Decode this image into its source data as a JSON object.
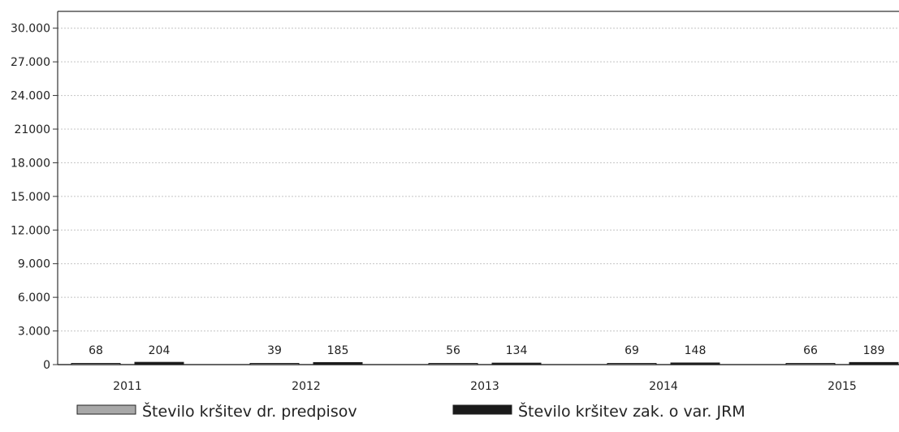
{
  "chart_data": {
    "type": "bar",
    "categories": [
      "2011",
      "2012",
      "2013",
      "2014",
      "2015"
    ],
    "series": [
      {
        "name": "Število kršitev dr. predpisov",
        "values": [
          68,
          39,
          56,
          69,
          66
        ],
        "color": "#a8a8a8"
      },
      {
        "name": "Število kršitev zak. o var. JRM",
        "values": [
          204,
          185,
          134,
          148,
          189
        ],
        "color": "#1a1a1a"
      }
    ],
    "y_ticks": [
      {
        "value": 0,
        "label": "0"
      },
      {
        "value": 3000,
        "label": "3.000"
      },
      {
        "value": 6000,
        "label": "6.000"
      },
      {
        "value": 9000,
        "label": "9.000"
      },
      {
        "value": 12000,
        "label": "12.000"
      },
      {
        "value": 15000,
        "label": "15.000"
      },
      {
        "value": 18000,
        "label": "18.000"
      },
      {
        "value": 21000,
        "label": "21000"
      },
      {
        "value": 24000,
        "label": "24.000"
      },
      {
        "value": 27000,
        "label": "27.000"
      },
      {
        "value": 30000,
        "label": "30.000"
      }
    ],
    "ylim": [
      0,
      31500
    ],
    "grid": "horizontal",
    "legend_position": "bottom",
    "data_labels": true
  }
}
